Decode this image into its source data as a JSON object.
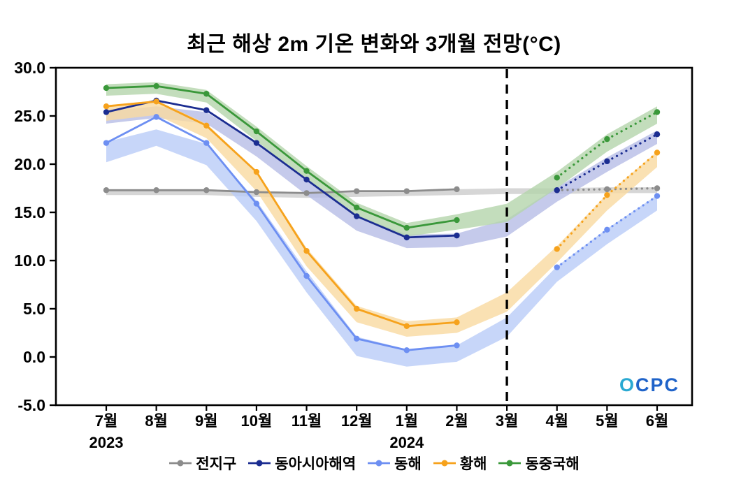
{
  "watermark": "OCPC",
  "chart_data": {
    "type": "line",
    "title": "최근 해상 2m 기온 변화와 3개월 전망(°C)",
    "x_labels": [
      "7월",
      "8월",
      "9월",
      "10월",
      "11월",
      "12월",
      "1월",
      "2월",
      "3월",
      "4월",
      "5월",
      "6월"
    ],
    "year_labels": [
      {
        "index": 0,
        "label": "2023"
      },
      {
        "index": 6,
        "label": "2024"
      }
    ],
    "ylim": [
      -5.0,
      30.0
    ],
    "yticks": [
      -5.0,
      0.0,
      5.0,
      10.0,
      15.0,
      20.0,
      25.0,
      30.0
    ],
    "ytick_labels": [
      "-5.0",
      "0.0",
      "5.0",
      "10.0",
      "15.0",
      "20.0",
      "25.0",
      "30.0"
    ],
    "divider_index": 8,
    "observed_start_index": 0,
    "forecast_start_index": 9,
    "legend_position": "bottom",
    "series": [
      {
        "name": "전지구",
        "color": "#8c8c8c",
        "band_color": "#cccccc",
        "observed": [
          17.3,
          17.3,
          17.3,
          17.1,
          17.0,
          17.2,
          17.2,
          17.4
        ],
        "forecast": [
          17.3,
          17.4,
          17.5
        ],
        "band_low": [
          16.8,
          16.8,
          16.8,
          16.6,
          16.5,
          16.6,
          16.7,
          16.8,
          16.9,
          16.9,
          17.0,
          17.0
        ],
        "band_high": [
          17.4,
          17.4,
          17.4,
          17.2,
          17.1,
          17.2,
          17.3,
          17.4,
          17.5,
          17.5,
          17.6,
          17.6
        ]
      },
      {
        "name": "동아시아해역",
        "color": "#1b2d91",
        "band_color": "#b7bde6",
        "observed": [
          25.4,
          26.6,
          25.6,
          22.2,
          18.4,
          14.6,
          12.4,
          12.6
        ],
        "forecast": [
          17.3,
          20.3,
          23.1
        ],
        "band_low": [
          24.2,
          24.8,
          24.2,
          20.8,
          16.8,
          13.1,
          11.3,
          11.4,
          12.5,
          16.1,
          19.2,
          22.1
        ],
        "band_high": [
          25.5,
          26.0,
          25.4,
          22.2,
          18.3,
          14.7,
          12.7,
          12.8,
          14.3,
          17.6,
          20.7,
          23.5
        ]
      },
      {
        "name": "동해",
        "color": "#6d8ff2",
        "band_color": "#b9ccf8",
        "observed": [
          22.2,
          24.9,
          22.2,
          15.9,
          8.4,
          1.9,
          0.7,
          1.2
        ],
        "forecast": [
          9.3,
          13.2,
          16.7
        ],
        "band_low": [
          20.2,
          21.9,
          19.9,
          14.1,
          6.7,
          0.1,
          -1.0,
          -0.5,
          2.1,
          7.8,
          11.7,
          15.2
        ],
        "band_high": [
          22.3,
          23.6,
          22.1,
          16.2,
          8.9,
          2.1,
          0.8,
          1.2,
          4.1,
          9.4,
          13.3,
          16.8
        ]
      },
      {
        "name": "황해",
        "color": "#f6a21c",
        "band_color": "#f9d9a0",
        "observed": [
          26.0,
          26.5,
          24.0,
          19.2,
          11.0,
          5.0,
          3.2,
          3.6
        ],
        "forecast": [
          11.2,
          16.8,
          21.2
        ],
        "band_low": [
          24.5,
          25.1,
          22.7,
          17.2,
          9.4,
          3.6,
          2.1,
          2.5,
          4.7,
          9.8,
          15.2,
          19.7
        ],
        "band_high": [
          26.1,
          26.6,
          24.2,
          19.3,
          11.3,
          5.3,
          3.7,
          4.1,
          6.7,
          11.5,
          16.9,
          21.3
        ]
      },
      {
        "name": "동중국해",
        "color": "#3a983a",
        "band_color": "#b4d5ab",
        "observed": [
          27.9,
          28.1,
          27.3,
          23.4,
          19.3,
          15.5,
          13.4,
          14.2
        ],
        "forecast": [
          18.6,
          22.6,
          25.4
        ],
        "band_low": [
          27.1,
          27.3,
          26.4,
          22.4,
          18.3,
          14.5,
          12.5,
          13.2,
          14.0,
          17.5,
          21.3,
          24.2
        ],
        "band_high": [
          28.3,
          28.5,
          27.7,
          23.9,
          19.8,
          16.0,
          13.9,
          14.8,
          15.9,
          19.2,
          23.1,
          26.0
        ]
      }
    ],
    "watermark_colors": {
      "first": "#2aa9d2",
      "rest": "#1f63c9"
    }
  }
}
